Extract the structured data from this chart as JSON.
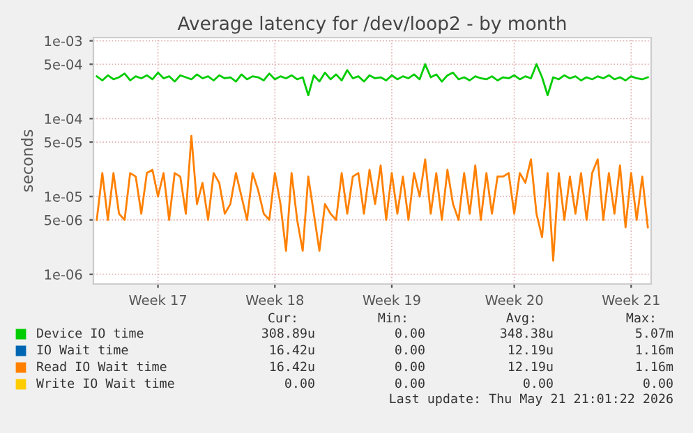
{
  "chart_data": {
    "type": "line",
    "title": "Average latency for /dev/loop2 - by month",
    "ylabel": "seconds",
    "categories": [
      null,
      null,
      null,
      null,
      null,
      null,
      null,
      null,
      null,
      null,
      null,
      "Week 17",
      null,
      null,
      null,
      null,
      null,
      null,
      null,
      null,
      null,
      null,
      null,
      null,
      null,
      null,
      null,
      null,
      null,
      null,
      null,
      null,
      "Week 18",
      null,
      null,
      null,
      null,
      null,
      null,
      null,
      null,
      null,
      null,
      null,
      null,
      null,
      null,
      null,
      null,
      null,
      null,
      null,
      null,
      "Week 19",
      null,
      null,
      null,
      null,
      null,
      null,
      null,
      null,
      null,
      null,
      null,
      null,
      null,
      null,
      null,
      null,
      null,
      null,
      null,
      null,
      null,
      "Week 20",
      null,
      null,
      null,
      null,
      null,
      null,
      null,
      null,
      null,
      null,
      null,
      null,
      null,
      null,
      null,
      null,
      null,
      null,
      null,
      null,
      "Week 21",
      null,
      null,
      null
    ],
    "series": [
      {
        "name": "Device IO time",
        "color": "#00cc00",
        "values": [
          0.00035,
          0.00031,
          0.00036,
          0.00032,
          0.00034,
          0.00038,
          0.00031,
          0.00035,
          0.00033,
          0.00036,
          0.00032,
          0.00039,
          0.00033,
          0.00035,
          0.0003,
          0.00036,
          0.00034,
          0.00032,
          0.00037,
          0.00033,
          0.00035,
          0.00031,
          0.00036,
          0.00033,
          0.00034,
          0.0003,
          0.00037,
          0.00032,
          0.00035,
          0.00034,
          0.00031,
          0.00038,
          0.00032,
          0.00035,
          0.00033,
          0.00036,
          0.00032,
          0.00034,
          0.0002,
          0.00036,
          0.0003,
          0.00039,
          0.00032,
          0.00037,
          0.00031,
          0.00042,
          0.00033,
          0.00035,
          0.0003,
          0.00036,
          0.00033,
          0.00034,
          0.00031,
          0.00036,
          0.00032,
          0.00035,
          0.00033,
          0.00037,
          0.00032,
          0.0005,
          0.00034,
          0.00037,
          0.0003,
          0.00036,
          0.00039,
          0.00032,
          0.00034,
          0.00031,
          0.00035,
          0.00033,
          0.00032,
          0.00035,
          0.00031,
          0.00034,
          0.00033,
          0.00036,
          0.00032,
          0.00035,
          0.00033,
          0.0005,
          0.00034,
          0.0002,
          0.00034,
          0.00032,
          0.00036,
          0.00033,
          0.00035,
          0.00031,
          0.00034,
          0.00032,
          0.00035,
          0.00033,
          0.00036,
          0.00032,
          0.00034,
          0.00031,
          0.00035,
          0.00033,
          0.00032,
          0.00034
        ]
      },
      {
        "name": "IO Wait time",
        "color": "#0066b3",
        "values": [
          null,
          null,
          null,
          null,
          null,
          null,
          null,
          null,
          null,
          null,
          null,
          null,
          null,
          null,
          null,
          null,
          null,
          null,
          null,
          null,
          null,
          null,
          null,
          null,
          null,
          null,
          null,
          null,
          null,
          null,
          null,
          null,
          null,
          null,
          null,
          null,
          null,
          null,
          null,
          null,
          null,
          null,
          null,
          null,
          null,
          null,
          null,
          null,
          null,
          null,
          null,
          null,
          null,
          null,
          null,
          null,
          null,
          null,
          null,
          null,
          null,
          null,
          null,
          null,
          null,
          null,
          null,
          null,
          null,
          null,
          null,
          null,
          null,
          null,
          null,
          null,
          null,
          null,
          null,
          null,
          null,
          null,
          null,
          null,
          null,
          null,
          null,
          null,
          null,
          null,
          null,
          null,
          null,
          null,
          null,
          null,
          null,
          null,
          null,
          null
        ]
      },
      {
        "name": "Read IO Wait time",
        "color": "#ff8000",
        "values": [
          5e-06,
          2e-05,
          5e-06,
          2e-05,
          6e-06,
          5e-06,
          2e-05,
          1.8e-05,
          6e-06,
          2e-05,
          2.2e-05,
          1e-05,
          2e-05,
          5e-06,
          2e-05,
          1.8e-05,
          6e-06,
          6e-05,
          8e-06,
          1.5e-05,
          5e-06,
          2e-05,
          1.5e-05,
          6e-06,
          8e-06,
          2e-05,
          1e-05,
          5e-06,
          2e-05,
          1.2e-05,
          6e-06,
          5e-06,
          2e-05,
          8e-06,
          2e-06,
          2e-05,
          5e-06,
          2e-06,
          1.8e-05,
          6e-06,
          2e-06,
          8e-06,
          6e-06,
          5e-06,
          2e-05,
          6e-06,
          1.8e-05,
          2e-05,
          6e-06,
          2.2e-05,
          8e-06,
          2.5e-05,
          5e-06,
          2e-05,
          6e-06,
          1.8e-05,
          5e-06,
          2e-05,
          1e-05,
          3e-05,
          6e-06,
          2e-05,
          5e-06,
          2.2e-05,
          8e-06,
          5e-06,
          2e-05,
          6e-06,
          2.5e-05,
          5e-06,
          2e-05,
          6e-06,
          1.8e-05,
          1.8e-05,
          2e-05,
          6e-06,
          2e-05,
          1.5e-05,
          3e-05,
          6e-06,
          3e-06,
          2e-05,
          1.5e-06,
          2e-05,
          5e-06,
          1.8e-05,
          6e-06,
          2e-05,
          5e-06,
          2e-05,
          3e-05,
          5e-06,
          2e-05,
          6e-06,
          2.5e-05,
          4e-06,
          2e-05,
          5e-06,
          1.8e-05,
          4e-06
        ]
      },
      {
        "name": "Write IO Wait time",
        "color": "#ffcc00",
        "values": [
          null,
          null,
          null,
          null,
          null,
          null,
          null,
          null,
          null,
          null,
          null,
          null,
          null,
          null,
          null,
          null,
          null,
          null,
          null,
          null,
          null,
          null,
          null,
          null,
          null,
          null,
          null,
          null,
          null,
          null,
          null,
          null,
          null,
          null,
          null,
          null,
          null,
          null,
          null,
          null,
          null,
          null,
          null,
          null,
          null,
          null,
          null,
          null,
          null,
          null,
          null,
          null,
          null,
          null,
          null,
          null,
          null,
          null,
          null,
          null,
          null,
          null,
          null,
          null,
          null,
          null,
          null,
          null,
          null,
          null,
          null,
          null,
          null,
          null,
          null,
          null,
          null,
          null,
          null,
          null,
          null,
          null,
          null,
          null,
          null,
          null,
          null,
          null,
          null,
          null,
          null,
          null,
          null,
          null,
          null,
          null,
          null,
          null,
          null,
          null
        ]
      }
    ],
    "log": "y",
    "ylim": [
      7.5e-07,
      0.0011
    ],
    "yticks": [
      {
        "value": 1e-06,
        "label": "1e-06"
      },
      {
        "value": 5e-06,
        "label": "5e-06"
      },
      {
        "value": 1e-05,
        "label": "1e-05"
      },
      {
        "value": 5e-05,
        "label": "5e-05"
      },
      {
        "value": 0.0001,
        "label": "1e-04"
      },
      {
        "value": 0.0005,
        "label": "5e-04"
      },
      {
        "value": 0.001,
        "label": "1e-03"
      }
    ],
    "grid": true,
    "legend": "bottom",
    "line_style": "solid",
    "marker": "none",
    "annotations": [
      "Cur:",
      "Min:",
      "Avg:",
      "Max:",
      "308.89u",
      "0.00",
      "348.38u",
      "5.07m",
      "16.42u",
      "0.00",
      "12.19u",
      "1.16m",
      "16.42u",
      "0.00",
      "12.19u",
      "1.16m",
      "0.00",
      "0.00",
      "0.00",
      "0.00",
      "Last update: Thu May 21 21:01:22 2026"
    ]
  }
}
